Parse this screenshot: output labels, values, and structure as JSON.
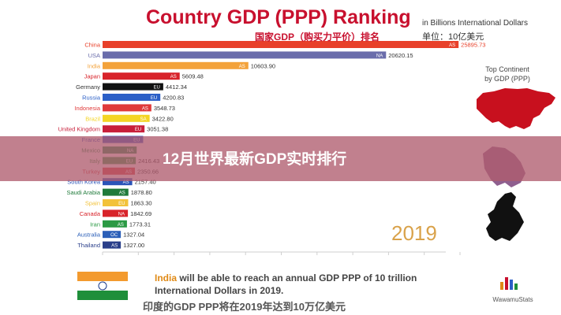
{
  "header": {
    "title": "Country GDP (PPP) Ranking",
    "subtitle_zh": "国家GDP（购买力平价）排名",
    "unit_en": "in Billions International Dollars",
    "unit_zh": "单位：10亿美元"
  },
  "side_panel": {
    "continent_label_1": "Top Continent",
    "continent_label_2": "by GDP (PPP)"
  },
  "year": "2019",
  "banner": {
    "text": "12月世界最新GDP实时排行"
  },
  "footer": {
    "en_highlight": "India",
    "en_text": " will be able to reach an annual GDP PPP of 10 trillion International Dollars in 2019.",
    "zh_text": "印度的GDP PPP将在2019年达到10万亿美元"
  },
  "watermark": "WawamuStats",
  "chart_data": {
    "type": "bar",
    "orientation": "horizontal",
    "categories": [
      "China",
      "USA",
      "India",
      "Japan",
      "Germany",
      "Russia",
      "Indonesia",
      "Brazil",
      "United Kingdom",
      "France",
      "Mexico",
      "Italy",
      "Turkey",
      "South Korea",
      "Saudi Arabia",
      "Spain",
      "Canada",
      "Iran",
      "Australia",
      "Thailand"
    ],
    "continents": [
      "AS",
      "NA",
      "AS",
      "AS",
      "EU",
      "EU",
      "AS",
      "SA",
      "EU",
      "EU",
      "NA",
      "EU",
      "AS",
      "AS",
      "AS",
      "EU",
      "NA",
      "AS",
      "OC",
      "AS"
    ],
    "values": [
      25895.73,
      20620.15,
      10603.9,
      5609.48,
      4412.34,
      4200.83,
      3548.73,
      3422.8,
      3051.38,
      2952.0,
      2480.0,
      2416.43,
      2350.66,
      2157.4,
      1878.8,
      1863.3,
      1842.69,
      1773.31,
      1327.04,
      1327.0
    ],
    "value_labels": [
      "25895.73",
      "20620.15",
      "10603.90",
      "5609.48",
      "4412.34",
      "4200.83",
      "3548.73",
      "3422.80",
      "3051.38",
      "",
      "",
      "2416.43",
      "2350.66",
      "2157.40",
      "1878.80",
      "1863.30",
      "1842.69",
      "1773.31",
      "1327.04",
      "1327.00"
    ],
    "colors": [
      "#e8402a",
      "#6a6dab",
      "#f3a23a",
      "#d8232a",
      "#111111",
      "#2b5fc7",
      "#e03a3a",
      "#f4d524",
      "#c81f3a",
      "#2a52c8",
      "#1f8f4a",
      "#2b9a44",
      "#d83a3a",
      "#2b54b8",
      "#1f7a3a",
      "#f2c23a",
      "#d8232a",
      "#2b9a44",
      "#2b5fb8",
      "#2a3f8a"
    ],
    "xlim": [
      0,
      26000
    ]
  },
  "colors": {
    "title_red": "#c8102e",
    "banner": "#b05c6e",
    "year": "#d9a24a"
  },
  "icons": [
    "india-flag-icon",
    "asia-map-icon",
    "europe-map-icon",
    "wawamu-logo-icon"
  ]
}
